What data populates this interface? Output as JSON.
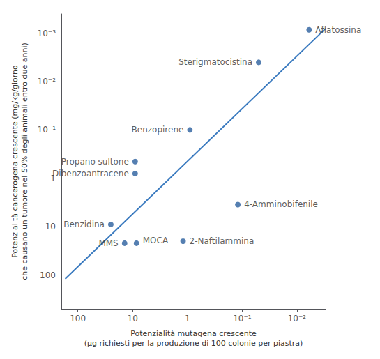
{
  "chart_data": {
    "type": "scatter",
    "xlabel": "Potenzialità mutagena crescente\n(μg richiesti per la produzione di 100 colonie per piastra)",
    "ylabel": "Potenzialità cancerogena crescente (mg/kg/giorno\nche causano un tumore nel 50% degli animali entro due anni)",
    "log": true,
    "grid": false,
    "xlim": [
      200,
      0.003
    ],
    "ylim": [
      500,
      0.0004
    ],
    "xticks": [
      100,
      10,
      1,
      {
        "value": 0.1,
        "label": "10⁻¹"
      },
      {
        "value": 0.01,
        "label": "10⁻²"
      }
    ],
    "yticks": [
      {
        "value": 0.001,
        "label": "10⁻³"
      },
      {
        "value": 0.01,
        "label": "10⁻²"
      },
      {
        "value": 0.1,
        "label": "10⁻¹"
      },
      1,
      10,
      100
    ],
    "series": [
      {
        "type": "scatter",
        "color": "#2a5f9e",
        "data_labels": true,
        "labels": [
          "Aflatossina",
          "Sterigmatocistina",
          "Benzopirene",
          "Propano sultone",
          "Dibenzoantracene",
          "4-Amminobifenile",
          "Benzidina",
          "MMS",
          "MOCA",
          "2-Naftilammina"
        ],
        "x": [
          0.006,
          0.05,
          0.9,
          9.0,
          9.0,
          0.12,
          25.0,
          14.0,
          8.5,
          1.2
        ],
        "values": [
          0.00085,
          0.004,
          0.1,
          0.45,
          0.8,
          3.5,
          9.0,
          22.0,
          22.0,
          20.0
        ]
      },
      {
        "type": "line",
        "color": "#3a7abf",
        "x": [
          170,
          0.003
        ],
        "values": [
          120,
          0.0008
        ]
      }
    ]
  }
}
